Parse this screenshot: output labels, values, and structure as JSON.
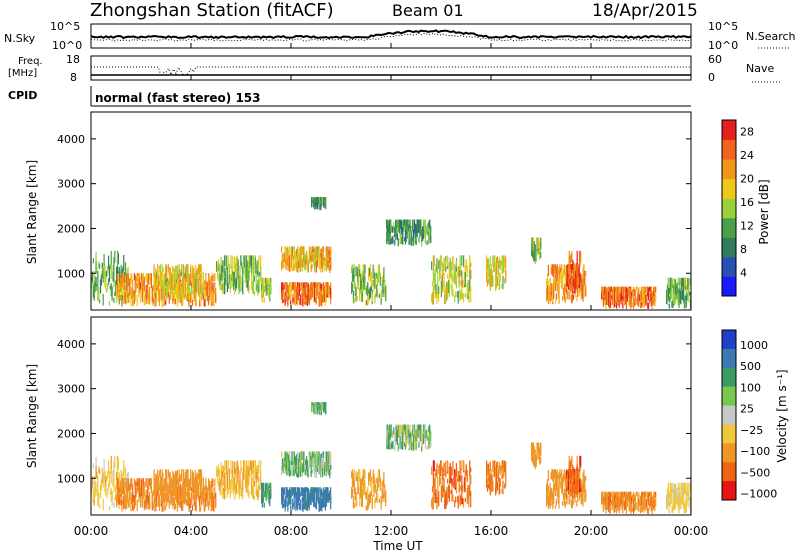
{
  "header": {
    "station": "Zhongshan Station (fitACF)",
    "beam": "Beam 01",
    "date": "18/Apr/2015"
  },
  "noise_panel": {
    "left_label": "N.Sky",
    "right_label": "N.Search",
    "tick_top": "10^5",
    "tick_bottom": "10^0"
  },
  "freq_panel": {
    "left_label_line1": "Freq.",
    "left_label_line2": "[MHz]",
    "right_label": "Nave",
    "left_tick_top": "18",
    "left_tick_bottom": "8",
    "right_tick_top": "60",
    "right_tick_bottom": "0"
  },
  "cpid_panel": {
    "label": "CPID",
    "text": "normal (fast stereo) 153"
  },
  "power_panel": {
    "ylabel": "Slant Range [km]",
    "yticks": [
      "4000",
      "3000",
      "2000",
      "1000"
    ],
    "colorbar_label": "Power [dB]",
    "colorbar_ticks": [
      "28",
      "24",
      "20",
      "16",
      "12",
      "8",
      "4"
    ]
  },
  "velocity_panel": {
    "ylabel": "Slant Range [km]",
    "yticks": [
      "4000",
      "3000",
      "2000",
      "1000"
    ],
    "colorbar_label": "Velocity [m s⁻¹]",
    "colorbar_ticks": [
      "1000",
      "500",
      "100",
      "25",
      "−25",
      "−100",
      "−500",
      "−1000"
    ]
  },
  "xaxis": {
    "label": "Time UT",
    "ticks": [
      "00:00",
      "04:00",
      "08:00",
      "12:00",
      "16:00",
      "20:00",
      "00:00"
    ]
  },
  "colors": {
    "power_scale": [
      "#1a1aff",
      "#2850b4",
      "#2f7d5a",
      "#4aa04a",
      "#9bd23a",
      "#f0c819",
      "#f09619",
      "#f0641e",
      "#e61e1e"
    ],
    "velocity_scale": [
      "#2040c8",
      "#3c78b4",
      "#3c9a64",
      "#78c850",
      "#c8c8c8",
      "#f0c83c",
      "#f09628",
      "#f06414",
      "#e61414"
    ]
  },
  "chart_data": {
    "type": "heatmap",
    "x_range_hours": [
      0,
      24
    ],
    "y_range_km": [
      180,
      4600
    ],
    "power_range_db": [
      0,
      30
    ],
    "velocity_range_ms": [
      -1000,
      1000
    ],
    "patches": [
      {
        "t0": 0.0,
        "t1": 1.5,
        "r0": 250,
        "r1": 1500,
        "p": 12,
        "v": -60
      },
      {
        "t0": 1.0,
        "t1": 5.0,
        "r0": 250,
        "r1": 1000,
        "p": 22,
        "v": -400
      },
      {
        "t0": 2.5,
        "t1": 4.5,
        "r0": 400,
        "r1": 1200,
        "p": 18,
        "v": -200
      },
      {
        "t0": 5.0,
        "t1": 6.8,
        "r0": 500,
        "r1": 1400,
        "p": 14,
        "v": -80
      },
      {
        "t0": 6.8,
        "t1": 7.2,
        "r0": 300,
        "r1": 900,
        "p": 16,
        "v": 60
      },
      {
        "t0": 7.6,
        "t1": 9.6,
        "r0": 250,
        "r1": 800,
        "p": 24,
        "v": 150
      },
      {
        "t0": 7.6,
        "t1": 9.6,
        "r0": 1000,
        "r1": 1600,
        "p": 20,
        "v": 20
      },
      {
        "t0": 8.8,
        "t1": 9.4,
        "r0": 2400,
        "r1": 2700,
        "p": 10,
        "v": 30
      },
      {
        "t0": 10.4,
        "t1": 11.8,
        "r0": 250,
        "r1": 1200,
        "p": 14,
        "v": -150
      },
      {
        "t0": 11.8,
        "t1": 13.6,
        "r0": 1600,
        "r1": 2200,
        "p": 10,
        "v": 15
      },
      {
        "t0": 13.6,
        "t1": 15.2,
        "r0": 300,
        "r1": 1400,
        "p": 16,
        "v": -600
      },
      {
        "t0": 15.8,
        "t1": 16.6,
        "r0": 600,
        "r1": 1400,
        "p": 18,
        "v": -500
      },
      {
        "t0": 17.6,
        "t1": 18.0,
        "r0": 1200,
        "r1": 1800,
        "p": 14,
        "v": -250
      },
      {
        "t0": 18.2,
        "t1": 19.8,
        "r0": 300,
        "r1": 1200,
        "p": 22,
        "v": -300
      },
      {
        "t0": 19.0,
        "t1": 19.6,
        "r0": 500,
        "r1": 1500,
        "p": 26,
        "v": -700
      },
      {
        "t0": 20.4,
        "t1": 22.6,
        "r0": 200,
        "r1": 700,
        "p": 24,
        "v": -400
      },
      {
        "t0": 23.0,
        "t1": 24.0,
        "r0": 200,
        "r1": 900,
        "p": 12,
        "v": -50
      }
    ]
  }
}
